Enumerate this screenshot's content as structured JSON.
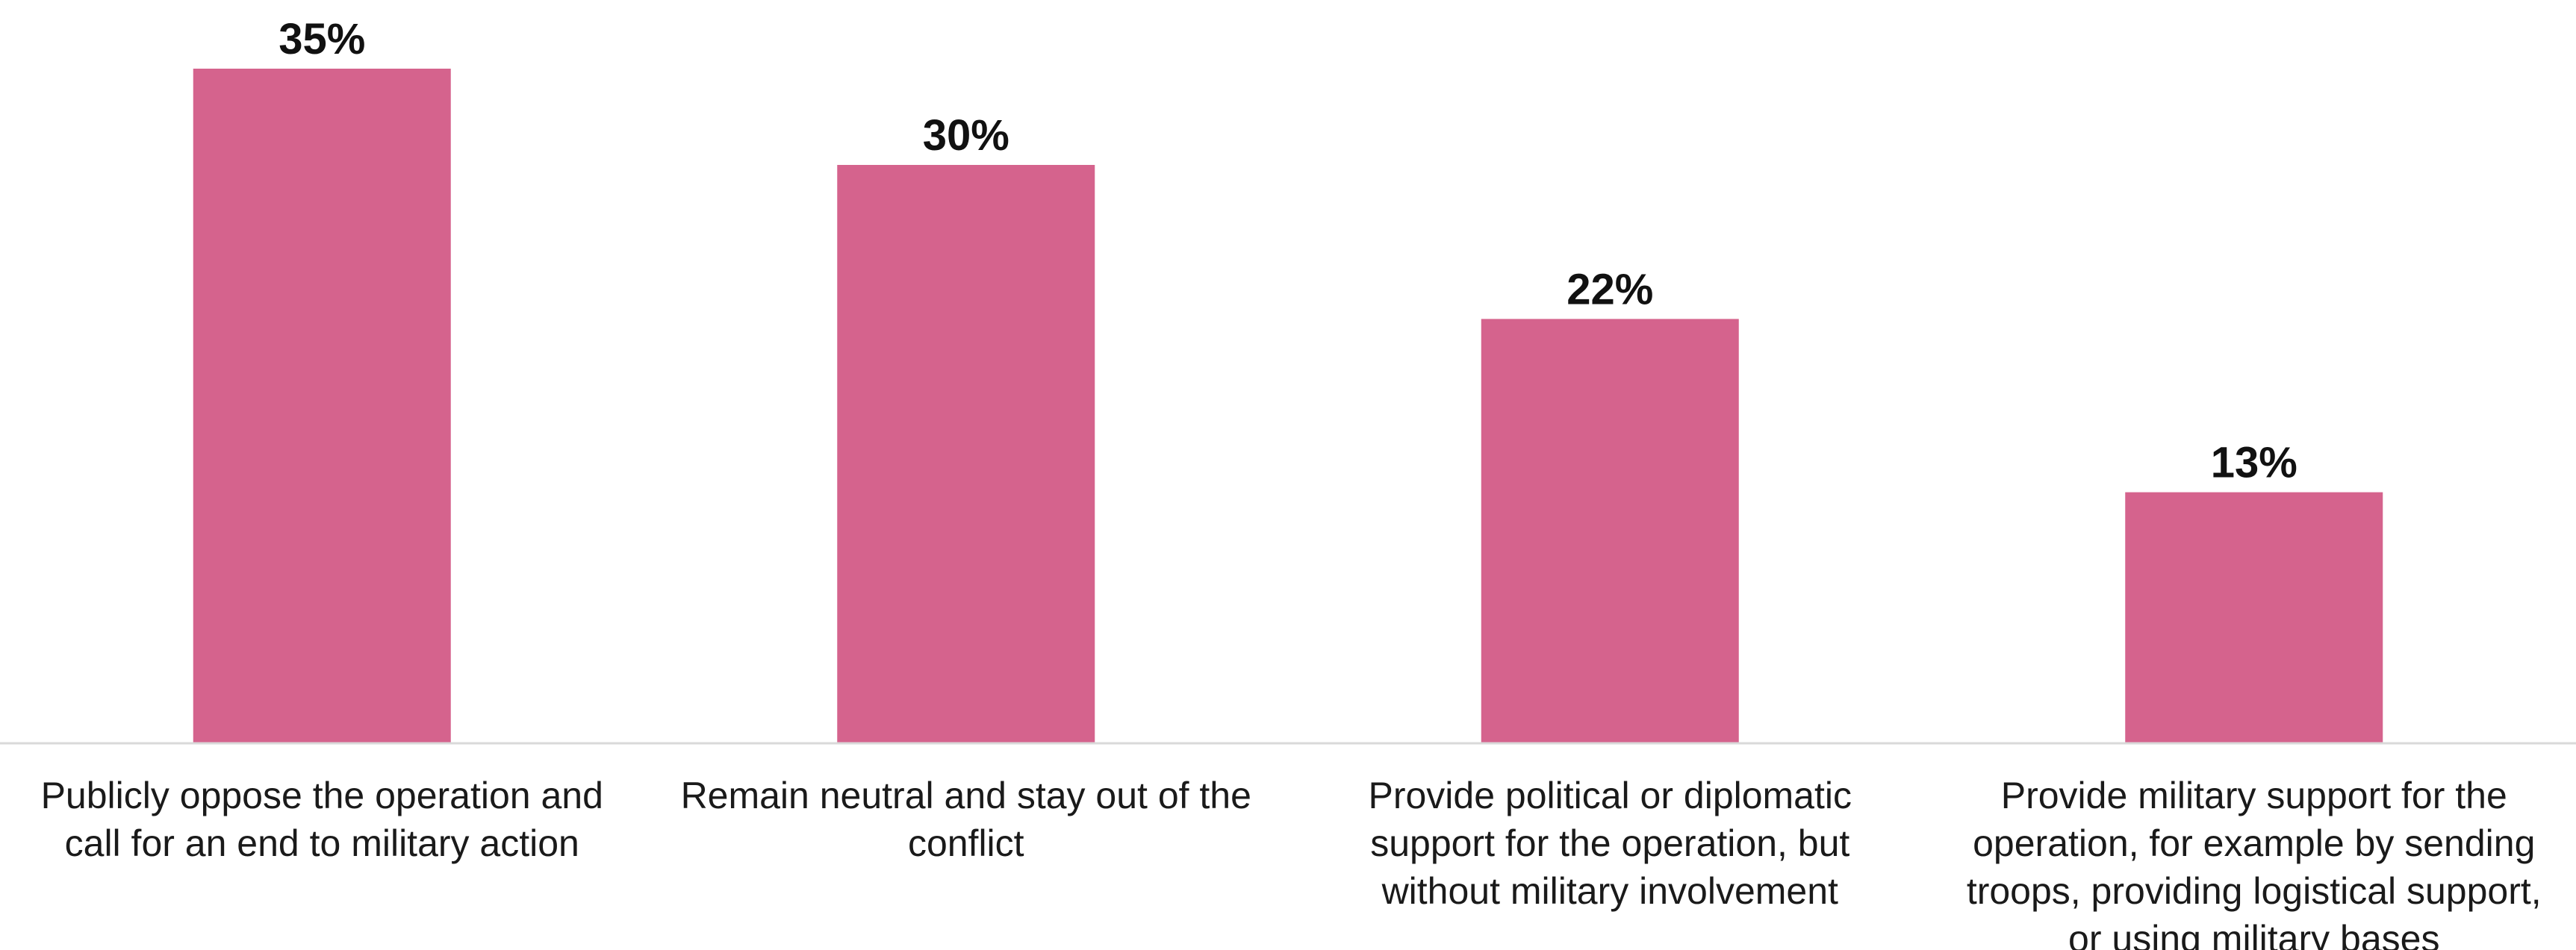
{
  "chart_data": {
    "type": "bar",
    "title": "",
    "xlabel": "",
    "ylabel": "",
    "ylim": [
      0,
      35
    ],
    "grid": false,
    "value_suffix": "%",
    "categories": [
      [
        "Publicly oppose the operation and",
        "call for an end to military action"
      ],
      [
        "Remain neutral and stay out of the",
        "conflict"
      ],
      [
        "Provide political or diplomatic",
        "support for the operation, but",
        "without military involvement"
      ],
      [
        "Provide military support for the",
        "operation, for example by sending",
        "troops, providing logistical support,",
        "or using military bases"
      ]
    ],
    "values": [
      35,
      30,
      22,
      13
    ],
    "value_labels": [
      "35%",
      "30%",
      "22%",
      "13%"
    ],
    "colors": {
      "bar": "#D5638D",
      "axis": "#D9D9D9",
      "text": "#111111"
    }
  }
}
